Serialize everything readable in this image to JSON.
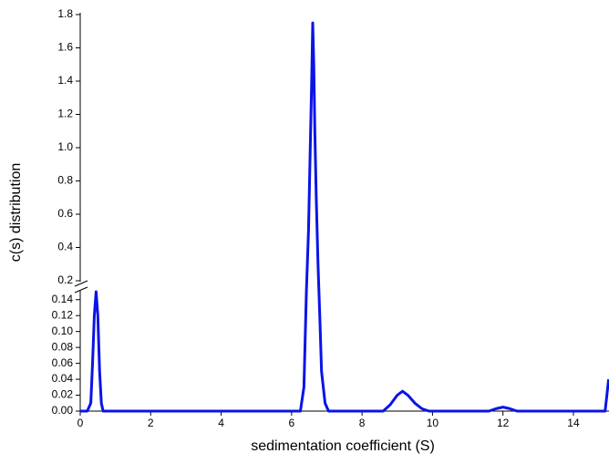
{
  "chart_data": {
    "type": "line",
    "xlabel": "sedimentation coefficient (S)",
    "ylabel": "c(s) distribution",
    "xlim": [
      0,
      15
    ],
    "xticks": [
      0,
      2,
      4,
      6,
      8,
      10,
      12,
      14
    ],
    "ylim": [
      0,
      1.8
    ],
    "ybreak": [
      0.15,
      0.2
    ],
    "yticks": [
      {
        "value": 0,
        "label": "0.00"
      },
      0.02,
      0.04,
      0.06,
      0.08,
      {
        "value": 0.1,
        "label": "0.10"
      },
      0.12,
      0.14,
      0.2,
      0.4,
      0.6,
      0.8,
      {
        "value": 1,
        "label": "1.0"
      },
      1.2,
      1.4,
      1.6,
      1.8
    ],
    "series": [
      {
        "color": "#0a14e6",
        "x": [
          0,
          0.2,
          0.3,
          0.35,
          0.4,
          0.45,
          0.5,
          0.55,
          0.6,
          0.65,
          6.25,
          6.35,
          6.42,
          6.48,
          6.53,
          6.57,
          6.6,
          6.63,
          6.66,
          6.7,
          6.75,
          6.8,
          6.85,
          6.95,
          7.05,
          8.6,
          8.8,
          9.0,
          9.15,
          9.3,
          9.5,
          9.7,
          9.9,
          11.6,
          11.8,
          12.0,
          12.2,
          12.4,
          14.9,
          14.95,
          15.0
        ],
        "values": [
          0,
          0,
          0.01,
          0.06,
          0.12,
          0.15,
          0.12,
          0.05,
          0.01,
          0,
          0,
          0.03,
          0.15,
          0.5,
          1.0,
          1.4,
          1.75,
          1.5,
          1.1,
          0.7,
          0.3,
          0.12,
          0.05,
          0.01,
          0,
          0,
          0.008,
          0.02,
          0.025,
          0.02,
          0.01,
          0.003,
          0,
          0,
          0.003,
          0.005,
          0.003,
          0,
          0,
          0.02,
          0.04
        ]
      }
    ]
  }
}
